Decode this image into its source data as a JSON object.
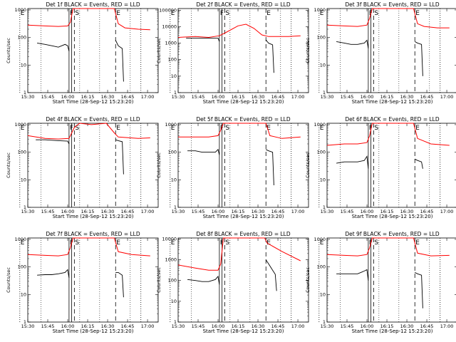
{
  "chart_data": {
    "type": "line",
    "shared": {
      "ylabel": "Counts/sec",
      "xlabel": "Start Time (28-Sep-12 15:23:20)",
      "x_ticks": [
        "15:30",
        "15:45",
        "16:00",
        "16:15",
        "16:30",
        "16:45",
        "17:00"
      ],
      "x_range_min": [
        7,
        105
      ],
      "x_ticks_min": [
        7,
        22,
        37,
        52,
        67,
        82,
        97
      ],
      "y_scale": "log",
      "series_colors": {
        "events": "#000000",
        "lld": "#ff0000"
      },
      "markers": [
        {
          "label": "E",
          "t_min": 1,
          "style": "dotted"
        },
        {
          "label": "F",
          "t_min": 38,
          "style": "solid"
        },
        {
          "label": "S",
          "t_min": 42,
          "style": "dashed"
        },
        {
          "label": "E",
          "t_min": 73,
          "style": "dashed"
        },
        {
          "label": "",
          "t_min": 92,
          "style": "dotted"
        }
      ],
      "solid_extra_min": 40,
      "dotted_extra_min": [
        17,
        46,
        61,
        84
      ]
    },
    "panels": [
      {
        "title": "Det 1f BLACK = Events, RED = LLD",
        "y_ticks": [
          "1",
          "10",
          "100",
          "1000"
        ],
        "ylim_log": [
          0,
          3.05
        ],
        "lld": [
          [
            7,
            2.45
          ],
          [
            20,
            2.42
          ],
          [
            30,
            2.4
          ],
          [
            37,
            2.42
          ],
          [
            39,
            2.55
          ],
          [
            41,
            3.2
          ],
          [
            72,
            3.2
          ],
          [
            75,
            2.5
          ],
          [
            80,
            2.35
          ],
          [
            90,
            2.3
          ],
          [
            99,
            2.28
          ]
        ],
        "events": [
          [
            14,
            1.8
          ],
          [
            20,
            1.75
          ],
          [
            25,
            1.7
          ],
          [
            30,
            1.65
          ],
          [
            35,
            1.75
          ],
          [
            37,
            1.7
          ],
          [
            38,
            1.5
          ]
        ],
        "events2": [
          [
            73,
            1.9
          ],
          [
            75,
            1.7
          ],
          [
            78,
            1.6
          ],
          [
            79,
            0.4
          ]
        ]
      },
      {
        "title": "Det 2f BLACK = Events, RED = LLD",
        "y_ticks": [
          "1",
          "10",
          "100",
          "1000",
          "10000",
          "100000"
        ],
        "ylim_log": [
          0,
          5.1
        ],
        "lld": [
          [
            7,
            3.35
          ],
          [
            20,
            3.4
          ],
          [
            30,
            3.35
          ],
          [
            38,
            3.45
          ],
          [
            43,
            3.65
          ],
          [
            52,
            4.05
          ],
          [
            58,
            4.15
          ],
          [
            64,
            3.9
          ],
          [
            70,
            3.5
          ],
          [
            75,
            3.4
          ],
          [
            90,
            3.4
          ],
          [
            99,
            3.45
          ]
        ],
        "events": [
          [
            13,
            3.3
          ],
          [
            20,
            3.3
          ],
          [
            30,
            3.3
          ],
          [
            37,
            3.3
          ],
          [
            38,
            3.1
          ]
        ],
        "events2": [
          [
            73,
            3.2
          ],
          [
            75,
            3.0
          ],
          [
            78,
            2.9
          ],
          [
            79,
            1.2
          ]
        ]
      },
      {
        "title": "Det 3f BLACK = Events, RED = LLD",
        "y_ticks": [
          "1",
          "10",
          "100",
          "1000"
        ],
        "ylim_log": [
          0,
          3.05
        ],
        "lld": [
          [
            7,
            2.45
          ],
          [
            20,
            2.42
          ],
          [
            30,
            2.4
          ],
          [
            37,
            2.45
          ],
          [
            39,
            2.7
          ],
          [
            41,
            3.2
          ],
          [
            72,
            3.2
          ],
          [
            75,
            2.5
          ],
          [
            80,
            2.4
          ],
          [
            90,
            2.35
          ],
          [
            99,
            2.35
          ]
        ],
        "events": [
          [
            14,
            1.85
          ],
          [
            20,
            1.8
          ],
          [
            25,
            1.75
          ],
          [
            30,
            1.75
          ],
          [
            35,
            1.8
          ],
          [
            37,
            1.9
          ],
          [
            38,
            1.6
          ]
        ],
        "events2": [
          [
            73,
            1.85
          ],
          [
            75,
            1.8
          ],
          [
            78,
            1.75
          ],
          [
            79,
            0.6
          ]
        ]
      },
      {
        "title": "Det 4f BLACK = Events, RED = LLD",
        "y_ticks": [
          "1",
          "10",
          "100",
          "1000"
        ],
        "ylim_log": [
          0,
          3.05
        ],
        "lld": [
          [
            7,
            2.6
          ],
          [
            20,
            2.5
          ],
          [
            30,
            2.48
          ],
          [
            38,
            2.5
          ],
          [
            42,
            2.9
          ],
          [
            46,
            3.05
          ],
          [
            55,
            3.0
          ],
          [
            66,
            3.05
          ],
          [
            72,
            2.7
          ],
          [
            75,
            2.55
          ],
          [
            90,
            2.5
          ],
          [
            99,
            2.52
          ]
        ],
        "events": [
          [
            13,
            2.45
          ],
          [
            20,
            2.45
          ],
          [
            30,
            2.42
          ],
          [
            37,
            2.4
          ],
          [
            38,
            2.3
          ]
        ],
        "events2": [
          [
            73,
            2.45
          ],
          [
            75,
            2.42
          ],
          [
            78,
            2.38
          ],
          [
            79,
            1.2
          ]
        ]
      },
      {
        "title": "Det 5f BLACK = Events, RED = LLD",
        "y_ticks": [
          "1",
          "10",
          "100",
          "1000"
        ],
        "ylim_log": [
          0,
          3.05
        ],
        "lld": [
          [
            7,
            2.55
          ],
          [
            20,
            2.55
          ],
          [
            30,
            2.55
          ],
          [
            37,
            2.6
          ],
          [
            39,
            2.8
          ],
          [
            41,
            3.2
          ],
          [
            73,
            3.2
          ],
          [
            76,
            2.6
          ],
          [
            85,
            2.5
          ],
          [
            99,
            2.55
          ]
        ],
        "events": [
          [
            14,
            2.05
          ],
          [
            20,
            2.05
          ],
          [
            25,
            2.0
          ],
          [
            30,
            2.0
          ],
          [
            35,
            2.0
          ],
          [
            37,
            2.1
          ],
          [
            38,
            1.9
          ]
        ],
        "events2": [
          [
            73,
            2.1
          ],
          [
            75,
            2.05
          ],
          [
            78,
            2.0
          ],
          [
            79,
            0.8
          ]
        ]
      },
      {
        "title": "Det 6f BLACK = Events, RED = LLD",
        "y_ticks": [
          "1",
          "10",
          "100",
          "1000"
        ],
        "ylim_log": [
          0,
          3.05
        ],
        "lld": [
          [
            7,
            2.25
          ],
          [
            20,
            2.3
          ],
          [
            30,
            2.3
          ],
          [
            37,
            2.35
          ],
          [
            39,
            2.6
          ],
          [
            41,
            3.2
          ],
          [
            72,
            3.2
          ],
          [
            75,
            2.5
          ],
          [
            85,
            2.3
          ],
          [
            99,
            2.25
          ]
        ],
        "events": [
          [
            14,
            1.6
          ],
          [
            20,
            1.65
          ],
          [
            25,
            1.65
          ],
          [
            30,
            1.65
          ],
          [
            35,
            1.7
          ],
          [
            37,
            1.85
          ],
          [
            38,
            1.4
          ]
        ],
        "events2": [
          [
            73,
            1.75
          ],
          [
            75,
            1.7
          ],
          [
            78,
            1.65
          ],
          [
            79,
            1.4
          ]
        ]
      },
      {
        "title": "Det 7f BLACK = Events, RED = LLD",
        "y_ticks": [
          "1",
          "10",
          "100",
          "1000"
        ],
        "ylim_log": [
          0,
          3.05
        ],
        "lld": [
          [
            7,
            2.45
          ],
          [
            20,
            2.42
          ],
          [
            30,
            2.4
          ],
          [
            37,
            2.45
          ],
          [
            39,
            2.7
          ],
          [
            41,
            3.2
          ],
          [
            72,
            3.2
          ],
          [
            75,
            2.55
          ],
          [
            85,
            2.45
          ],
          [
            99,
            2.4
          ]
        ],
        "events": [
          [
            14,
            1.7
          ],
          [
            20,
            1.72
          ],
          [
            25,
            1.72
          ],
          [
            30,
            1.75
          ],
          [
            35,
            1.8
          ],
          [
            37,
            1.9
          ],
          [
            38,
            1.6
          ]
        ],
        "events2": [
          [
            73,
            1.8
          ],
          [
            75,
            1.8
          ],
          [
            78,
            1.7
          ],
          [
            79,
            0.9
          ]
        ]
      },
      {
        "title": "Det 8f BLACK = Events, RED = LLD",
        "y_ticks": [
          "1",
          "10",
          "100",
          "1000",
          "10000"
        ],
        "ylim_log": [
          0,
          4.05
        ],
        "lld": [
          [
            7,
            2.75
          ],
          [
            20,
            2.6
          ],
          [
            30,
            2.5
          ],
          [
            37,
            2.5
          ],
          [
            39,
            2.8
          ],
          [
            41,
            4.1
          ],
          [
            72,
            4.1
          ],
          [
            74,
            3.8
          ],
          [
            85,
            3.4
          ],
          [
            99,
            2.95
          ]
        ],
        "events": [
          [
            14,
            2.05
          ],
          [
            20,
            2.0
          ],
          [
            25,
            1.95
          ],
          [
            30,
            1.95
          ],
          [
            35,
            2.05
          ],
          [
            37,
            2.2
          ],
          [
            38,
            1.8
          ]
        ],
        "events2": [
          [
            73,
            3.0
          ],
          [
            75,
            2.8
          ],
          [
            78,
            2.5
          ],
          [
            80,
            2.3
          ],
          [
            81,
            1.5
          ]
        ]
      },
      {
        "title": "Det 9f BLACK = Events, RED = LLD",
        "y_ticks": [
          "1",
          "10",
          "100",
          "1000"
        ],
        "ylim_log": [
          0,
          3.05
        ],
        "lld": [
          [
            7,
            2.45
          ],
          [
            20,
            2.42
          ],
          [
            30,
            2.4
          ],
          [
            37,
            2.45
          ],
          [
            39,
            2.7
          ],
          [
            41,
            3.2
          ],
          [
            72,
            3.2
          ],
          [
            75,
            2.5
          ],
          [
            85,
            2.4
          ],
          [
            99,
            2.42
          ]
        ],
        "events": [
          [
            14,
            1.75
          ],
          [
            20,
            1.75
          ],
          [
            25,
            1.75
          ],
          [
            30,
            1.75
          ],
          [
            35,
            1.85
          ],
          [
            37,
            1.9
          ],
          [
            38,
            1.5
          ]
        ],
        "events2": [
          [
            73,
            1.8
          ],
          [
            75,
            1.75
          ],
          [
            78,
            1.7
          ],
          [
            79,
            0.5
          ]
        ]
      }
    ]
  }
}
